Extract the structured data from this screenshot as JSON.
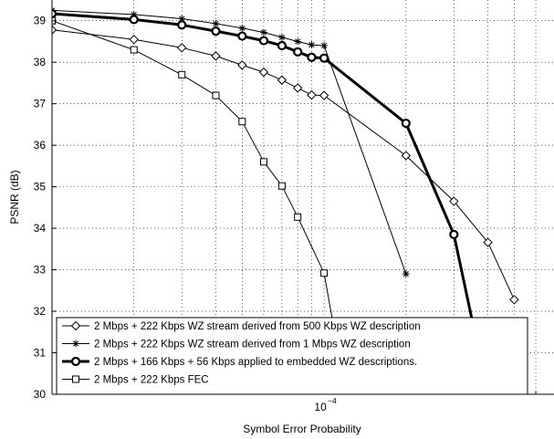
{
  "chart_data": {
    "type": "line",
    "title": "",
    "xlabel": "Symbol Error Probability",
    "ylabel": "PSNR (dB)",
    "xscale": "log",
    "xlim": [
      1e-05,
      0.0007
    ],
    "ylim": [
      30,
      39.5
    ],
    "grid": true,
    "legend_position": "bottom-left",
    "x_major_ticks": [
      0.0001
    ],
    "x_major_tick_labels": [
      {
        "base": "10",
        "exp": "−4"
      }
    ],
    "x_minor_ticks": [
      2e-05,
      3e-05,
      4e-05,
      5e-05,
      6e-05,
      7e-05,
      8e-05,
      9e-05,
      0.0002,
      0.0003,
      0.0004,
      0.0005,
      0.0006
    ],
    "y_ticks": [
      30,
      31,
      32,
      33,
      34,
      35,
      36,
      37,
      38,
      39
    ],
    "y_tick_labels": [
      "30",
      "31",
      "32",
      "33",
      "34",
      "35",
      "36",
      "37",
      "38",
      "39"
    ],
    "series": [
      {
        "name": "2 Mbps + 222 Kbps WZ stream derived from 500 Kbps WZ description",
        "marker": "diamond",
        "line_width": 1,
        "x": [
          1e-05,
          2e-05,
          3e-05,
          4e-05,
          5e-05,
          6e-05,
          7e-05,
          8e-05,
          9e-05,
          0.0001,
          0.0002,
          0.0003,
          0.0004,
          0.0005
        ],
        "y": [
          38.78,
          38.55,
          38.35,
          38.15,
          37.93,
          37.76,
          37.57,
          37.38,
          37.21,
          37.2,
          35.75,
          34.65,
          33.66,
          32.28
        ]
      },
      {
        "name": "2 Mbps + 222 Kbps WZ stream derived from 1 Mbps WZ description",
        "marker": "star",
        "line_width": 1,
        "x": [
          1e-05,
          2e-05,
          3e-05,
          4e-05,
          5e-05,
          6e-05,
          7e-05,
          8e-05,
          9e-05,
          0.0001,
          0.0002
        ],
        "y": [
          39.25,
          39.15,
          39.05,
          38.93,
          38.82,
          38.72,
          38.6,
          38.5,
          38.42,
          38.4,
          32.9
        ]
      },
      {
        "name": "2 Mbps + 166 Kbps + 56 Kbps applied to embedded WZ descriptions.",
        "marker": "circle",
        "line_width": 3,
        "x": [
          1e-05,
          2e-05,
          3e-05,
          4e-05,
          5e-05,
          6e-05,
          7e-05,
          8e-05,
          9e-05,
          0.0001,
          0.0002,
          0.0003,
          0.0004
        ],
        "y": [
          39.17,
          39.03,
          38.9,
          38.75,
          38.63,
          38.52,
          38.4,
          38.25,
          38.12,
          38.1,
          36.53,
          33.85,
          30.0
        ]
      },
      {
        "name": "2 Mbps + 222 Kbps FEC",
        "marker": "square",
        "line_width": 1,
        "x": [
          1e-05,
          2e-05,
          3e-05,
          4e-05,
          5e-05,
          6e-05,
          7e-05,
          8e-05,
          0.0001,
          0.00012
        ],
        "y": [
          39.0,
          38.3,
          37.7,
          37.2,
          36.57,
          35.6,
          35.02,
          34.27,
          32.92,
          30.0
        ]
      }
    ]
  }
}
